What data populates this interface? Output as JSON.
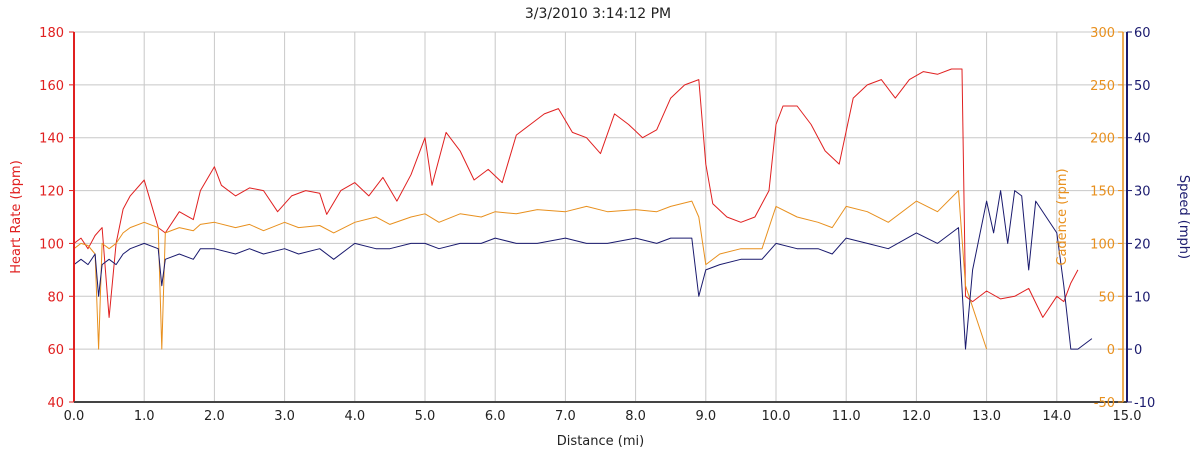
{
  "chart_data": {
    "type": "line",
    "title": "3/3/2010 3:14:12 PM",
    "xlabel": "Distance (mi)",
    "xlim": [
      0,
      15
    ],
    "x_ticks": [
      "0.0",
      "1.0",
      "2.0",
      "3.0",
      "4.0",
      "5.0",
      "6.0",
      "7.0",
      "8.0",
      "9.0",
      "10.0",
      "11.0",
      "12.0",
      "13.0",
      "14.0",
      "15.0"
    ],
    "axes": {
      "heart_rate": {
        "label": "Heart Rate (bpm)",
        "ylim": [
          40,
          180
        ],
        "ticks": [
          "40",
          "60",
          "80",
          "100",
          "120",
          "140",
          "160",
          "180"
        ],
        "color": "#e02020"
      },
      "cadence": {
        "label": "Cadence (rpm)",
        "ylim": [
          -50,
          300
        ],
        "ticks": [
          "-50",
          "0",
          "50",
          "100",
          "150",
          "200",
          "250",
          "300"
        ],
        "color": "#e8901e"
      },
      "speed": {
        "label": "Speed (mph)",
        "ylim": [
          -10,
          60
        ],
        "ticks": [
          "-10",
          "0",
          "10",
          "20",
          "30",
          "40",
          "50",
          "60"
        ],
        "color": "#1a1a6e"
      }
    },
    "grid": true,
    "series": [
      {
        "axis": "heart_rate",
        "color": "#e02020",
        "x": [
          0,
          0.1,
          0.2,
          0.3,
          0.4,
          0.5,
          0.6,
          0.7,
          0.8,
          1.0,
          1.1,
          1.2,
          1.3,
          1.5,
          1.7,
          1.8,
          2.0,
          2.1,
          2.3,
          2.5,
          2.7,
          2.9,
          3.1,
          3.3,
          3.5,
          3.6,
          3.8,
          4.0,
          4.2,
          4.4,
          4.6,
          4.8,
          5.0,
          5.1,
          5.3,
          5.5,
          5.7,
          5.9,
          6.1,
          6.3,
          6.5,
          6.7,
          6.9,
          7.1,
          7.3,
          7.5,
          7.7,
          7.9,
          8.1,
          8.3,
          8.5,
          8.7,
          8.9,
          9.0,
          9.1,
          9.3,
          9.5,
          9.7,
          9.9,
          10.0,
          10.1,
          10.3,
          10.5,
          10.7,
          10.9,
          11.1,
          11.3,
          11.5,
          11.7,
          11.9,
          12.1,
          12.3,
          12.5,
          12.6,
          12.65,
          12.7,
          12.8,
          13.0,
          13.2,
          13.4,
          13.6,
          13.8,
          14.0,
          14.1,
          14.2,
          14.3
        ],
        "y": [
          100,
          102,
          98,
          103,
          106,
          72,
          100,
          113,
          118,
          124,
          115,
          106,
          104,
          112,
          109,
          120,
          129,
          122,
          118,
          121,
          120,
          112,
          118,
          120,
          119,
          111,
          120,
          123,
          118,
          125,
          116,
          126,
          140,
          122,
          142,
          135,
          124,
          128,
          123,
          141,
          145,
          149,
          151,
          142,
          140,
          134,
          149,
          145,
          140,
          143,
          155,
          160,
          162,
          130,
          115,
          110,
          108,
          110,
          120,
          145,
          152,
          152,
          145,
          135,
          130,
          155,
          160,
          162,
          155,
          162,
          165,
          164,
          166,
          166,
          166,
          80,
          78,
          82,
          79,
          80,
          83,
          72,
          80,
          78,
          85,
          90
        ]
      },
      {
        "axis": "cadence",
        "color": "#e8901e",
        "x": [
          0,
          0.1,
          0.2,
          0.3,
          0.35,
          0.4,
          0.5,
          0.6,
          0.7,
          0.8,
          1.0,
          1.2,
          1.25,
          1.3,
          1.5,
          1.7,
          1.8,
          2.0,
          2.3,
          2.5,
          2.7,
          3.0,
          3.2,
          3.5,
          3.7,
          4.0,
          4.3,
          4.5,
          4.8,
          5.0,
          5.2,
          5.5,
          5.8,
          6.0,
          6.3,
          6.6,
          7.0,
          7.3,
          7.6,
          8.0,
          8.3,
          8.5,
          8.8,
          8.9,
          9.0,
          9.2,
          9.5,
          9.8,
          10.0,
          10.3,
          10.6,
          10.8,
          11.0,
          11.3,
          11.6,
          12.0,
          12.3,
          12.6,
          12.7,
          13.0
        ],
        "y": [
          95,
          100,
          98,
          90,
          0,
          100,
          95,
          100,
          110,
          115,
          120,
          115,
          0,
          110,
          115,
          112,
          118,
          120,
          115,
          118,
          112,
          120,
          115,
          117,
          110,
          120,
          125,
          118,
          125,
          128,
          120,
          128,
          125,
          130,
          128,
          132,
          130,
          135,
          130,
          132,
          130,
          135,
          140,
          125,
          80,
          90,
          95,
          95,
          135,
          125,
          120,
          115,
          135,
          130,
          120,
          140,
          130,
          150,
          60,
          0
        ]
      },
      {
        "axis": "speed",
        "color": "#1a1a6e",
        "x": [
          0,
          0.1,
          0.2,
          0.3,
          0.35,
          0.4,
          0.5,
          0.6,
          0.7,
          0.8,
          1.0,
          1.2,
          1.25,
          1.3,
          1.5,
          1.7,
          1.8,
          2.0,
          2.3,
          2.5,
          2.7,
          3.0,
          3.2,
          3.5,
          3.7,
          4.0,
          4.3,
          4.5,
          4.8,
          5.0,
          5.2,
          5.5,
          5.8,
          6.0,
          6.3,
          6.6,
          7.0,
          7.3,
          7.6,
          8.0,
          8.3,
          8.5,
          8.8,
          8.9,
          9.0,
          9.2,
          9.5,
          9.8,
          10.0,
          10.3,
          10.6,
          10.8,
          11.0,
          11.3,
          11.6,
          12.0,
          12.3,
          12.6,
          12.7,
          12.8,
          13.0,
          13.1,
          13.2,
          13.3,
          13.4,
          13.5,
          13.6,
          13.7,
          14.0,
          14.1,
          14.2,
          14.3,
          14.5
        ],
        "y": [
          16,
          17,
          16,
          18,
          10,
          16,
          17,
          16,
          18,
          19,
          20,
          19,
          12,
          17,
          18,
          17,
          19,
          19,
          18,
          19,
          18,
          19,
          18,
          19,
          17,
          20,
          19,
          19,
          20,
          20,
          19,
          20,
          20,
          21,
          20,
          20,
          21,
          20,
          20,
          21,
          20,
          21,
          21,
          10,
          15,
          16,
          17,
          17,
          20,
          19,
          19,
          18,
          21,
          20,
          19,
          22,
          20,
          23,
          0,
          15,
          28,
          22,
          30,
          20,
          30,
          29,
          15,
          28,
          22,
          12,
          0,
          0,
          2
        ]
      }
    ]
  }
}
